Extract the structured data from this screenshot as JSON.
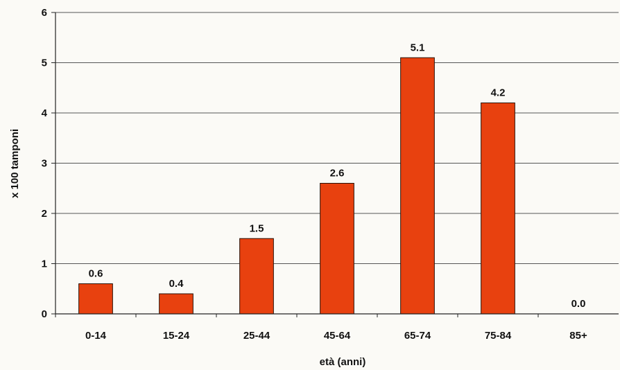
{
  "chart_data": {
    "type": "bar",
    "categories": [
      "0-14",
      "15-24",
      "25-44",
      "45-64",
      "65-74",
      "75-84",
      "85+"
    ],
    "values": [
      0.6,
      0.4,
      1.5,
      2.6,
      5.1,
      4.2,
      0.0
    ],
    "data_labels": [
      "0.6",
      "0.4",
      "1.5",
      "2.6",
      "5.1",
      "4.2",
      "0.0"
    ],
    "title": "",
    "xlabel": "età (anni)",
    "ylabel": "x 100 tamponi",
    "ylim": [
      0,
      6
    ],
    "yticks": [
      0,
      1,
      2,
      3,
      4,
      5,
      6
    ],
    "grid": true,
    "legend": "none",
    "bar_color": "#e8410f",
    "bar_edge_color": "#2a1208"
  }
}
